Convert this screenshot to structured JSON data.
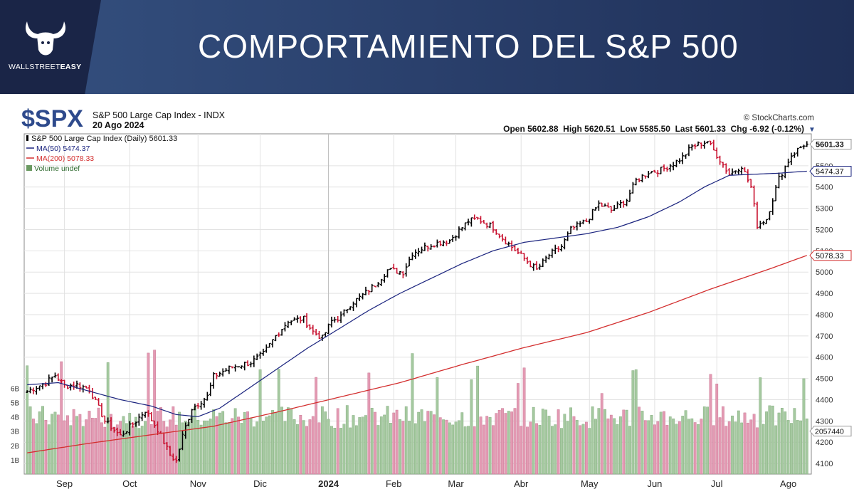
{
  "banner": {
    "title": "COMPORTAMIENTO DEL S&P 500",
    "logo_text_a": "WALLSTREET",
    "logo_text_b": "EASY"
  },
  "chart_header": {
    "symbol": "$SPX",
    "name": "S&P 500 Large Cap Index - INDX",
    "date": "20 Ago 2024",
    "source": "© StockCharts.com",
    "ohlc_line": "Open 5602.88  High 5620.51  Low 5585.50  Last 5601.33  Chg -6.92 (-0.12%)",
    "legend_1": "S&P 500 Large Cap Index (Daily) 5601.33",
    "legend_2": "MA(50) 5474.37",
    "legend_3": "MA(200) 5078.33",
    "legend_4": "Volume undef"
  },
  "colors": {
    "up": "#000000",
    "down": "#c8102e",
    "ma50": "#1a237e",
    "ma200": "#d32f2f",
    "vol_up": "#a5c9a0",
    "vol_down": "#e39ab3"
  },
  "chart_data": {
    "type": "line",
    "title": "S&P 500 Large Cap Index (Daily)",
    "ylim": [
      4050,
      5650
    ],
    "yticks": [
      4100,
      4200,
      4300,
      4400,
      4500,
      4600,
      4700,
      4800,
      4900,
      5000,
      5100,
      5200,
      5300,
      5400,
      5500
    ],
    "ytick_labels": [
      "4100",
      "4200",
      "4300",
      "4400",
      "4500",
      "4600",
      "4700",
      "4800",
      "4900",
      "5000",
      "5100",
      "5200",
      "5300",
      "5400",
      "5500"
    ],
    "vol_ticks": [
      "1B",
      "2B",
      "3B",
      "4B",
      "5B",
      "6B"
    ],
    "vol_tick_values": [
      1,
      2,
      3,
      4,
      5,
      6
    ],
    "vol_max": 9,
    "xlabels": [
      "Sep",
      "Oct",
      "Nov",
      "Dic",
      "2024",
      "Feb",
      "Mar",
      "Abr",
      "May",
      "Jun",
      "Jul",
      "Ago"
    ],
    "xlabel_index": [
      12,
      33,
      55,
      75,
      97,
      118,
      138,
      159,
      181,
      202,
      222,
      245
    ],
    "n_days": 252,
    "price_anchors": [
      [
        0,
        4440
      ],
      [
        6,
        4480
      ],
      [
        9,
        4515
      ],
      [
        12,
        4465
      ],
      [
        16,
        4470
      ],
      [
        20,
        4450
      ],
      [
        25,
        4300
      ],
      [
        30,
        4230
      ],
      [
        35,
        4300
      ],
      [
        38,
        4350
      ],
      [
        42,
        4260
      ],
      [
        46,
        4140
      ],
      [
        48,
        4110
      ],
      [
        50,
        4230
      ],
      [
        53,
        4360
      ],
      [
        58,
        4415
      ],
      [
        60,
        4510
      ],
      [
        66,
        4555
      ],
      [
        72,
        4575
      ],
      [
        76,
        4615
      ],
      [
        80,
        4700
      ],
      [
        84,
        4770
      ],
      [
        89,
        4780
      ],
      [
        92,
        4720
      ],
      [
        95,
        4690
      ],
      [
        98,
        4770
      ],
      [
        101,
        4790
      ],
      [
        104,
        4850
      ],
      [
        107,
        4880
      ],
      [
        112,
        4940
      ],
      [
        116,
        5010
      ],
      [
        121,
        5000
      ],
      [
        124,
        5090
      ],
      [
        130,
        5130
      ],
      [
        136,
        5150
      ],
      [
        142,
        5240
      ],
      [
        145,
        5250
      ],
      [
        150,
        5210
      ],
      [
        153,
        5160
      ],
      [
        158,
        5090
      ],
      [
        164,
        5010
      ],
      [
        168,
        5080
      ],
      [
        172,
        5120
      ],
      [
        175,
        5200
      ],
      [
        180,
        5240
      ],
      [
        184,
        5320
      ],
      [
        188,
        5290
      ],
      [
        193,
        5340
      ],
      [
        196,
        5430
      ],
      [
        200,
        5470
      ],
      [
        204,
        5480
      ],
      [
        208,
        5510
      ],
      [
        211,
        5540
      ],
      [
        214,
        5590
      ],
      [
        219,
        5615
      ],
      [
        222,
        5550
      ],
      [
        226,
        5460
      ],
      [
        230,
        5500
      ],
      [
        233,
        5400
      ],
      [
        235,
        5220
      ],
      [
        238,
        5250
      ],
      [
        242,
        5440
      ],
      [
        246,
        5550
      ],
      [
        250,
        5600
      ],
      [
        251,
        5601.33
      ]
    ],
    "ma50_anchors": [
      [
        0,
        4470
      ],
      [
        10,
        4480
      ],
      [
        20,
        4440
      ],
      [
        30,
        4400
      ],
      [
        40,
        4370
      ],
      [
        48,
        4330
      ],
      [
        55,
        4320
      ],
      [
        62,
        4360
      ],
      [
        70,
        4440
      ],
      [
        80,
        4540
      ],
      [
        90,
        4640
      ],
      [
        100,
        4730
      ],
      [
        110,
        4820
      ],
      [
        120,
        4900
      ],
      [
        130,
        4970
      ],
      [
        140,
        5040
      ],
      [
        150,
        5100
      ],
      [
        160,
        5140
      ],
      [
        170,
        5160
      ],
      [
        180,
        5180
      ],
      [
        190,
        5210
      ],
      [
        200,
        5260
      ],
      [
        210,
        5330
      ],
      [
        218,
        5400
      ],
      [
        226,
        5455
      ],
      [
        234,
        5460
      ],
      [
        242,
        5465
      ],
      [
        251,
        5474.37
      ]
    ],
    "ma200_anchors": [
      [
        0,
        4150
      ],
      [
        20,
        4195
      ],
      [
        40,
        4235
      ],
      [
        60,
        4275
      ],
      [
        80,
        4340
      ],
      [
        100,
        4410
      ],
      [
        120,
        4480
      ],
      [
        140,
        4565
      ],
      [
        160,
        4645
      ],
      [
        180,
        4715
      ],
      [
        200,
        4810
      ],
      [
        220,
        4920
      ],
      [
        240,
        5020
      ],
      [
        251,
        5078.33
      ]
    ],
    "last_price_label": "5601.33",
    "ma50_label": "5474.37",
    "ma200_label": "5078.33",
    "volume_label": "2057440",
    "series": [
      {
        "name": "S&P 500 Large Cap Index (Daily) 5601.33"
      },
      {
        "name": "MA(50) 5474.37"
      },
      {
        "name": "MA(200) 5078.33"
      },
      {
        "name": "Volume undef"
      }
    ]
  }
}
